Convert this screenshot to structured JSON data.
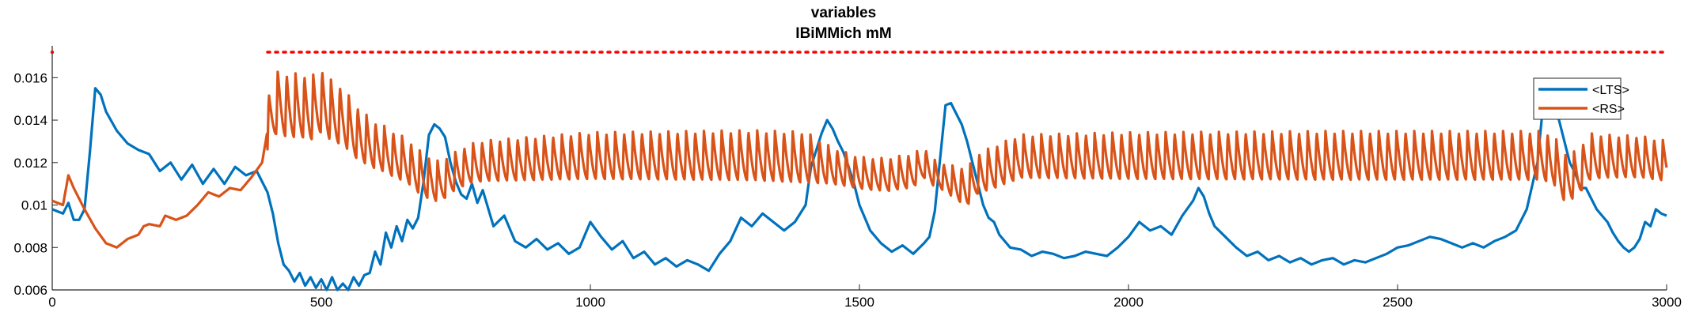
{
  "chart_data": {
    "type": "line",
    "title": "variables",
    "subtitle": "IBiMMich mM",
    "xlabel": "",
    "ylabel": "",
    "xlim": [
      0,
      3000
    ],
    "ylim": [
      0.006,
      0.0175
    ],
    "xticks": [
      0,
      500,
      1000,
      1500,
      2000,
      2500,
      3000
    ],
    "xtick_labels": [
      "0",
      "500",
      "1000",
      "1500",
      "2000",
      "2500",
      "3000"
    ],
    "yticks": [
      0.006,
      0.008,
      0.01,
      0.012,
      0.014,
      0.016
    ],
    "ytick_labels": [
      "0.006",
      "0.008",
      "0.01",
      "0.012",
      "0.014",
      "0.016"
    ],
    "grid": false,
    "legend_position": "top-right",
    "colors": {
      "LTS": "#0072BD",
      "RS": "#D95319",
      "marker": "#FF0000"
    },
    "series": [
      {
        "name": "<LTS>",
        "color": "#0072BD",
        "x": [
          0,
          10,
          20,
          30,
          40,
          50,
          60,
          70,
          80,
          90,
          100,
          120,
          140,
          160,
          180,
          200,
          220,
          240,
          260,
          280,
          300,
          320,
          340,
          360,
          380,
          400,
          410,
          420,
          430,
          440,
          450,
          460,
          470,
          480,
          490,
          500,
          510,
          520,
          530,
          540,
          550,
          560,
          570,
          580,
          590,
          600,
          610,
          620,
          630,
          640,
          650,
          660,
          670,
          680,
          690,
          700,
          710,
          720,
          730,
          740,
          750,
          760,
          770,
          780,
          790,
          800,
          820,
          840,
          860,
          880,
          900,
          920,
          940,
          960,
          980,
          1000,
          1020,
          1040,
          1060,
          1080,
          1100,
          1120,
          1140,
          1160,
          1180,
          1200,
          1220,
          1240,
          1260,
          1280,
          1300,
          1320,
          1340,
          1360,
          1380,
          1400,
          1410,
          1420,
          1430,
          1440,
          1450,
          1460,
          1470,
          1480,
          1490,
          1500,
          1520,
          1540,
          1560,
          1580,
          1600,
          1620,
          1630,
          1640,
          1650,
          1660,
          1670,
          1680,
          1690,
          1700,
          1710,
          1720,
          1730,
          1740,
          1750,
          1760,
          1780,
          1800,
          1820,
          1840,
          1860,
          1880,
          1900,
          1920,
          1940,
          1960,
          1980,
          2000,
          2020,
          2040,
          2060,
          2080,
          2100,
          2120,
          2130,
          2140,
          2150,
          2160,
          2180,
          2200,
          2220,
          2240,
          2260,
          2280,
          2300,
          2320,
          2340,
          2360,
          2380,
          2400,
          2420,
          2440,
          2460,
          2480,
          2500,
          2520,
          2540,
          2560,
          2580,
          2600,
          2620,
          2640,
          2660,
          2680,
          2700,
          2720,
          2740,
          2760,
          2770,
          2780,
          2790,
          2800,
          2810,
          2820,
          2830,
          2840,
          2850,
          2860,
          2870,
          2880,
          2890,
          2900,
          2910,
          2920,
          2930,
          2940,
          2950,
          2960,
          2970,
          2980,
          2990,
          3000
        ],
        "values": [
          0.0098,
          0.0097,
          0.0096,
          0.0101,
          0.0093,
          0.0093,
          0.0098,
          0.0125,
          0.0155,
          0.0152,
          0.0144,
          0.0135,
          0.0129,
          0.0126,
          0.0124,
          0.0116,
          0.012,
          0.0112,
          0.0119,
          0.011,
          0.0117,
          0.011,
          0.0118,
          0.0114,
          0.0116,
          0.0106,
          0.0096,
          0.0082,
          0.0072,
          0.0069,
          0.0064,
          0.0068,
          0.0062,
          0.0066,
          0.0061,
          0.0065,
          0.006,
          0.0066,
          0.006,
          0.0063,
          0.006,
          0.0066,
          0.0062,
          0.0067,
          0.0068,
          0.0078,
          0.0072,
          0.0087,
          0.008,
          0.009,
          0.0083,
          0.0093,
          0.0089,
          0.0094,
          0.0111,
          0.0133,
          0.0138,
          0.0136,
          0.0132,
          0.012,
          0.0111,
          0.0105,
          0.0103,
          0.011,
          0.0101,
          0.0107,
          0.009,
          0.0095,
          0.0083,
          0.008,
          0.0084,
          0.0079,
          0.0082,
          0.0077,
          0.008,
          0.0092,
          0.0085,
          0.0079,
          0.0083,
          0.0075,
          0.0078,
          0.0072,
          0.0075,
          0.0071,
          0.0074,
          0.0072,
          0.0069,
          0.0077,
          0.0083,
          0.0094,
          0.009,
          0.0096,
          0.0092,
          0.0088,
          0.0092,
          0.01,
          0.0118,
          0.0126,
          0.0134,
          0.014,
          0.0136,
          0.013,
          0.0125,
          0.0118,
          0.011,
          0.01,
          0.0088,
          0.0082,
          0.0078,
          0.0081,
          0.0077,
          0.0082,
          0.0085,
          0.0097,
          0.0122,
          0.0147,
          0.0148,
          0.0143,
          0.0138,
          0.013,
          0.012,
          0.011,
          0.01,
          0.0094,
          0.0092,
          0.0086,
          0.008,
          0.0079,
          0.0076,
          0.0078,
          0.0077,
          0.0075,
          0.0076,
          0.0078,
          0.0077,
          0.0076,
          0.008,
          0.0085,
          0.0092,
          0.0088,
          0.009,
          0.0086,
          0.0095,
          0.0102,
          0.0108,
          0.0104,
          0.0096,
          0.009,
          0.0085,
          0.008,
          0.0076,
          0.0078,
          0.0074,
          0.0076,
          0.0073,
          0.0075,
          0.0072,
          0.0074,
          0.0075,
          0.0072,
          0.0074,
          0.0073,
          0.0075,
          0.0077,
          0.008,
          0.0081,
          0.0083,
          0.0085,
          0.0084,
          0.0082,
          0.008,
          0.0082,
          0.008,
          0.0083,
          0.0085,
          0.0088,
          0.0098,
          0.012,
          0.0146,
          0.015,
          0.0147,
          0.014,
          0.013,
          0.012,
          0.0115,
          0.0108,
          0.0108,
          0.0103,
          0.0098,
          0.0095,
          0.0092,
          0.0087,
          0.0083,
          0.008,
          0.0078,
          0.008,
          0.0084,
          0.0092,
          0.009,
          0.0098,
          0.0096,
          0.0095
        ]
      },
      {
        "name": "<RS>",
        "color": "#D95319",
        "base_x": [
          0,
          20,
          30,
          40,
          60,
          80,
          100,
          120,
          140,
          160,
          170,
          180,
          200,
          210,
          230,
          250,
          270,
          290,
          310,
          330,
          350,
          370,
          390,
          400,
          420,
          440,
          460,
          480,
          500,
          520,
          540,
          560,
          580,
          600,
          620,
          640,
          660,
          680,
          700,
          720,
          740,
          760,
          780,
          800,
          900,
          1000,
          1100,
          1200,
          1300,
          1400,
          1450,
          1500,
          1550,
          1600,
          1620,
          1640,
          1660,
          1680,
          1700,
          1720,
          1800,
          1900,
          2000,
          2100,
          2200,
          2300,
          2400,
          2500,
          2600,
          2700,
          2750,
          2770,
          2790,
          2810,
          2830,
          2850,
          2860,
          2880,
          2900,
          2950,
          3000
        ],
        "base_y": [
          0.0102,
          0.01,
          0.0114,
          0.0108,
          0.0098,
          0.0089,
          0.0082,
          0.008,
          0.0084,
          0.0086,
          0.009,
          0.0091,
          0.009,
          0.0095,
          0.0093,
          0.0095,
          0.01,
          0.0106,
          0.0104,
          0.0108,
          0.0107,
          0.0113,
          0.012,
          0.0135,
          0.0145,
          0.0142,
          0.0143,
          0.0141,
          0.0145,
          0.014,
          0.0138,
          0.0132,
          0.0128,
          0.0125,
          0.0123,
          0.012,
          0.0118,
          0.0113,
          0.011,
          0.0108,
          0.0112,
          0.0115,
          0.0117,
          0.0118,
          0.0119,
          0.012,
          0.012,
          0.012,
          0.012,
          0.0119,
          0.0116,
          0.0113,
          0.0112,
          0.0114,
          0.0118,
          0.0113,
          0.0111,
          0.0108,
          0.0106,
          0.0112,
          0.012,
          0.012,
          0.012,
          0.012,
          0.012,
          0.012,
          0.012,
          0.012,
          0.012,
          0.012,
          0.012,
          0.012,
          0.0118,
          0.011,
          0.0111,
          0.0117,
          0.012,
          0.012,
          0.012,
          0.012,
          0.0118
        ],
        "amp_x": [
          0,
          390,
          400,
          430,
          500,
          540,
          600,
          700,
          750,
          800,
          1000,
          1400,
          1450,
          1500,
          1600,
          1650,
          1700,
          1750,
          2000,
          2400,
          2800,
          2900,
          3000
        ],
        "amp_y": [
          0,
          0,
          0.0025,
          0.003,
          0.003,
          0.0027,
          0.0022,
          0.002,
          0.0018,
          0.0019,
          0.0022,
          0.0024,
          0.0017,
          0.0015,
          0.0016,
          0.0012,
          0.0018,
          0.002,
          0.0022,
          0.0023,
          0.0023,
          0.002,
          0.0019
        ],
        "oscillation_period": 16.5,
        "oscillation_start": 400
      }
    ],
    "annotations": [
      {
        "type": "dotted_line",
        "color": "#FF0000",
        "x_start": 400,
        "x_end": 3000,
        "y": 0.0172
      },
      {
        "type": "marker",
        "color": "#FF0000",
        "x": 0,
        "y": 0.0172
      }
    ]
  }
}
